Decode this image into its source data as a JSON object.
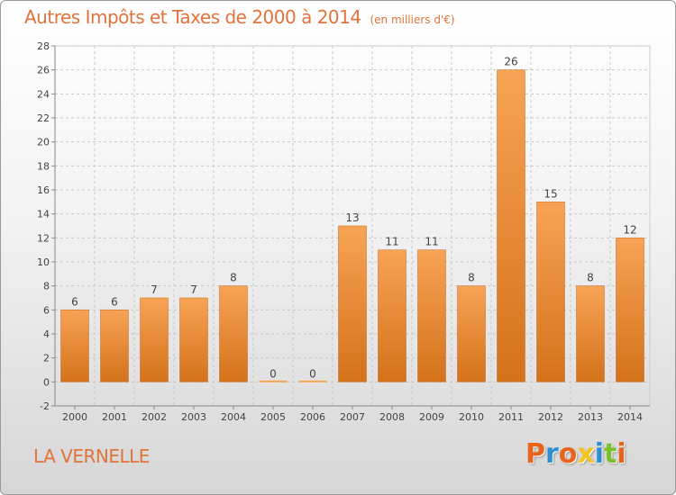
{
  "header": {
    "title": "Autres Impôts et Taxes de 2000 à 2014",
    "unit": "(en milliers d'€)"
  },
  "footer": {
    "location": "LA VERNELLE",
    "brand": "Proxiti",
    "brand_colors": [
      "#e8641c",
      "#2f8ed0",
      "#e8641c",
      "#f2c41c",
      "#2f8ed0",
      "#7cbf2a",
      "#e8641c"
    ]
  },
  "colors": {
    "bar_top": "#f7a355",
    "bar_bottom": "#d4721a",
    "grid": "#c8c8c8",
    "axis": "#888888",
    "text": "#444444"
  },
  "chart_data": {
    "type": "bar",
    "title": "Autres Impôts et Taxes de 2000 à 2014",
    "subtitle": "(en milliers d'€)",
    "xlabel": "",
    "ylabel": "",
    "categories": [
      "2000",
      "2001",
      "2002",
      "2003",
      "2004",
      "2005",
      "2006",
      "2007",
      "2008",
      "2009",
      "2010",
      "2011",
      "2012",
      "2013",
      "2014"
    ],
    "values": [
      6,
      6,
      7,
      7,
      8,
      0,
      0,
      13,
      11,
      11,
      8,
      26,
      15,
      8,
      12
    ],
    "data_labels": [
      "6",
      "6",
      "7",
      "7",
      "8",
      "0",
      "0",
      "13",
      "11",
      "11",
      "8",
      "26",
      "15",
      "8",
      "12"
    ],
    "ylim": [
      -2,
      28
    ],
    "yticks": [
      -2,
      0,
      2,
      4,
      6,
      8,
      10,
      12,
      14,
      16,
      18,
      20,
      22,
      24,
      26,
      28
    ],
    "grid": true,
    "legend": "none"
  }
}
